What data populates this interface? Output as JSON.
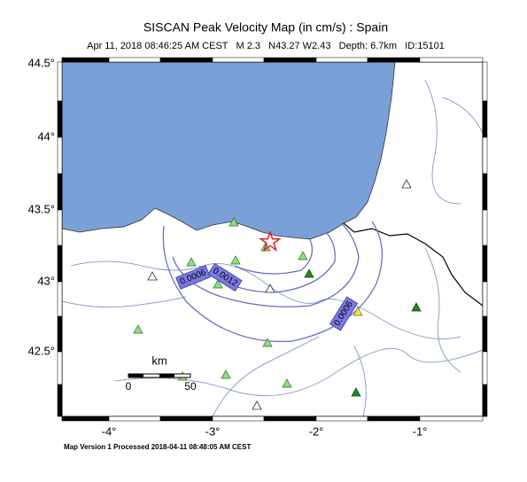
{
  "header": {
    "title": "SISCAN Peak Velocity Map (in cm/s) : Spain",
    "subtitle": "Apr 11, 2018 08:46:25 AM CEST   M 2.3   N43.27 W2.43   Depth: 6.7km   ID:15101"
  },
  "latitude_labels": [
    "44.5°",
    "44°",
    "43.5°",
    "43°",
    "42.5°"
  ],
  "longitude_labels": [
    "-4°",
    "-3°",
    "-2°",
    "-1°"
  ],
  "contour_labels": [
    "0.0006",
    "0.0012",
    "0.0006"
  ],
  "scale_bar": {
    "unit": "km",
    "start": "0",
    "end": "50"
  },
  "footer": "Map Version 1 Processed 2018-04-11 08:48:05 AM CEST"
}
